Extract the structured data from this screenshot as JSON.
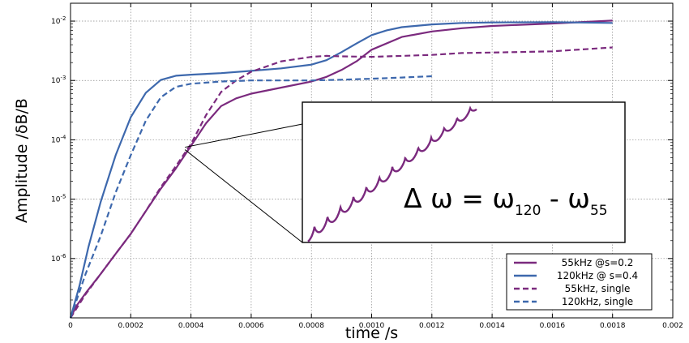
{
  "chart_data": {
    "type": "line",
    "xlabel": "time /s",
    "ylabel": "Amplitude /δB/B",
    "xlim": [
      0,
      0.002
    ],
    "ylim": [
      1e-07,
      0.02
    ],
    "yscale": "log",
    "grid": true,
    "legend_position": "bottom-right",
    "x_ticks": [
      "0",
      "0.0002",
      "0.0004",
      "0.0006",
      "0.0008",
      "0.0010",
      "0.0012",
      "0.0014",
      "0.0016",
      "0.0018",
      "0.002"
    ],
    "x_tick_values": [
      0,
      0.0002,
      0.0004,
      0.0006,
      0.0008,
      0.001,
      0.0012,
      0.0014,
      0.0016,
      0.0018,
      0.002
    ],
    "y_ticks": [
      {
        "base": "10",
        "exp": "-6",
        "value": 1e-06
      },
      {
        "base": "10",
        "exp": "-5",
        "value": 1e-05
      },
      {
        "base": "10",
        "exp": "-4",
        "value": 0.0001
      },
      {
        "base": "10",
        "exp": "-3",
        "value": 0.001
      },
      {
        "base": "10",
        "exp": "-2",
        "value": 0.01
      }
    ],
    "series": [
      {
        "name": "55kHz @s=0.2",
        "color": "#7b2a7e",
        "dash": "solid",
        "x": [
          0,
          2e-05,
          5e-05,
          0.0001,
          0.00015,
          0.0002,
          0.00025,
          0.0003,
          0.00035,
          0.0004,
          0.00045,
          0.0005,
          0.00055,
          0.0006,
          0.0007,
          0.0008,
          0.00085,
          0.0009,
          0.00095,
          0.001,
          0.0011,
          0.0012,
          0.0013,
          0.0014,
          0.0016,
          0.0018
        ],
        "y": [
          1e-07,
          1.6e-07,
          2.6e-07,
          5.5e-07,
          1.2e-06,
          2.6e-06,
          6.3e-06,
          1.5e-05,
          3.3e-05,
          7.9e-05,
          0.00019,
          0.00037,
          0.0005,
          0.0006,
          0.00076,
          0.00096,
          0.00115,
          0.0015,
          0.0021,
          0.0033,
          0.0054,
          0.0067,
          0.0076,
          0.0083,
          0.0091,
          0.0102
        ]
      },
      {
        "name": "120kHz @ s=0.4",
        "color": "#3d68ad",
        "dash": "solid",
        "x": [
          0,
          3e-05,
          6e-05,
          0.0001,
          0.00015,
          0.0002,
          0.00025,
          0.0003,
          0.00035,
          0.0004,
          0.0005,
          0.0006,
          0.0007,
          0.0008,
          0.00085,
          0.0009,
          0.00095,
          0.001,
          0.00105,
          0.0011,
          0.0012,
          0.0013,
          0.0014,
          0.0016,
          0.0018
        ],
        "y": [
          1e-07,
          3.5e-07,
          1.6e-06,
          9e-06,
          5.5e-05,
          0.00024,
          0.00062,
          0.00102,
          0.0012,
          0.00125,
          0.00133,
          0.00145,
          0.0016,
          0.00185,
          0.0022,
          0.003,
          0.0042,
          0.0058,
          0.007,
          0.0079,
          0.0088,
          0.0093,
          0.0095,
          0.0096,
          0.0093
        ]
      },
      {
        "name": "55kHz, single",
        "color": "#7b2a7e",
        "dash": "dashed",
        "x": [
          0,
          5e-05,
          0.0001,
          0.00015,
          0.0002,
          0.00025,
          0.0003,
          0.00035,
          0.0004,
          0.00045,
          0.0005,
          0.00055,
          0.0006,
          0.0007,
          0.0008,
          0.00085,
          0.0009,
          0.001,
          0.0011,
          0.0012,
          0.0013,
          0.0014,
          0.0016,
          0.0018
        ],
        "y": [
          1e-07,
          2.5e-07,
          5.5e-07,
          1.2e-06,
          2.6e-06,
          6.3e-06,
          1.6e-05,
          3.6e-05,
          8.5e-05,
          0.00026,
          0.00064,
          0.001,
          0.0014,
          0.0021,
          0.0025,
          0.0026,
          0.00255,
          0.0025,
          0.0026,
          0.0027,
          0.0029,
          0.00295,
          0.0031,
          0.0036
        ]
      },
      {
        "name": "120kHz, single",
        "color": "#3d68ad",
        "dash": "dashed",
        "x": [
          0,
          5e-05,
          0.0001,
          0.00015,
          0.0002,
          0.00025,
          0.0003,
          0.00035,
          0.0004,
          0.0005,
          0.0006,
          0.0007,
          0.0008,
          0.0009,
          0.001,
          0.0011,
          0.0012
        ],
        "y": [
          1e-07,
          5.5e-07,
          2.4e-06,
          1.3e-05,
          5.5e-05,
          0.00021,
          0.00052,
          0.00078,
          0.00088,
          0.00096,
          0.001,
          0.001,
          0.001,
          0.00103,
          0.00107,
          0.00112,
          0.00118
        ]
      }
    ],
    "inset": {
      "formula": {
        "delta": "Δ",
        "omega": "ω",
        "sub1": "120",
        "sub2": "55"
      },
      "source_point": {
        "x": 0.00038,
        "y": 7.5e-05
      },
      "oscillation_periods": 13
    }
  }
}
